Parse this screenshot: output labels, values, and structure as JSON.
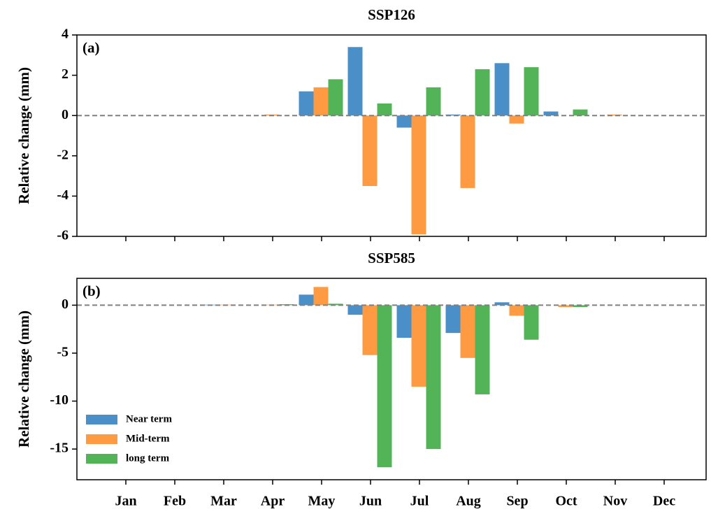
{
  "chart_data": [
    {
      "type": "bar",
      "title": "SSP126",
      "panel_label": "(a)",
      "y_label": "Relative change (mm)",
      "ylim": [
        -6,
        4
      ],
      "yticks": [
        4,
        2,
        0,
        -2,
        -4,
        -6
      ],
      "series": [
        {
          "color": "#4a8fc7",
          "values": [
            0,
            0,
            0,
            0,
            1.2,
            3.4,
            -0.6,
            0.05,
            2.6,
            0.2,
            0,
            0
          ]
        },
        {
          "color": "#fe9b42",
          "values": [
            0,
            0,
            0,
            0.05,
            1.4,
            -3.5,
            -5.9,
            -3.6,
            -0.4,
            0,
            0.05,
            0
          ]
        },
        {
          "color": "#53b457",
          "values": [
            0,
            0,
            0,
            0,
            1.8,
            0.6,
            1.4,
            2.3,
            2.4,
            0.3,
            0,
            0
          ]
        }
      ]
    },
    {
      "type": "bar",
      "title": "SSP585",
      "panel_label": "(b)",
      "y_label": "Relative change (mm)",
      "categories": [
        "Jan",
        "Feb",
        "Mar",
        "Apr",
        "May",
        "Jun",
        "Jul",
        "Aug",
        "Sep",
        "Oct",
        "Nov",
        "Dec"
      ],
      "ylim": [
        -18.2,
        2.8
      ],
      "yticks": [
        0,
        -5,
        -10,
        -15
      ],
      "series": [
        {
          "name": "Near term",
          "color": "#4a8fc7",
          "values": [
            0,
            0,
            0.05,
            0,
            1.1,
            -1.0,
            -3.4,
            -2.9,
            0.3,
            0,
            0,
            0
          ]
        },
        {
          "name": "Mid-term",
          "color": "#fe9b42",
          "values": [
            0,
            0,
            0.05,
            0.05,
            1.9,
            -5.2,
            -8.5,
            -5.5,
            -1.1,
            -0.2,
            0,
            0
          ]
        },
        {
          "name": "long term",
          "color": "#53b457",
          "values": [
            0,
            0,
            0,
            0.1,
            0.15,
            -16.9,
            -15.0,
            -9.3,
            -3.6,
            -0.2,
            0,
            0
          ]
        }
      ],
      "legend": "lower left"
    }
  ]
}
